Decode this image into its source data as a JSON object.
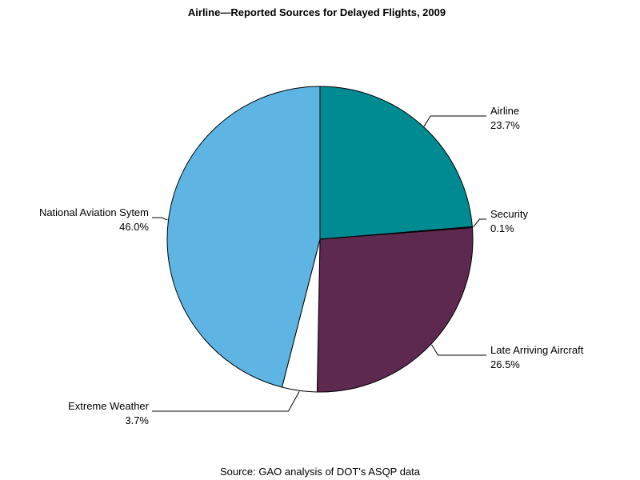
{
  "chart_data": {
    "type": "pie",
    "title": "Airline—Reported Sources for Delayed Flights, 2009",
    "source": "Source: GAO analysis of DOT's ASQP data",
    "slices": [
      {
        "name": "Airline",
        "value": 23.7,
        "label": "23.7%",
        "color": "#008B92"
      },
      {
        "name": "Security",
        "value": 0.1,
        "label": "0.1%",
        "color": "#5E5E9E"
      },
      {
        "name": "Late Arriving Aircraft",
        "value": 26.5,
        "label": "26.5%",
        "color": "#5E294F"
      },
      {
        "name": "Extreme Weather",
        "value": 3.7,
        "label": "3.7%",
        "color": "#FFFFFF"
      },
      {
        "name": "National Aviation Sytem",
        "value": 46.0,
        "label": "46.0%",
        "color": "#5EB5E3"
      }
    ]
  }
}
